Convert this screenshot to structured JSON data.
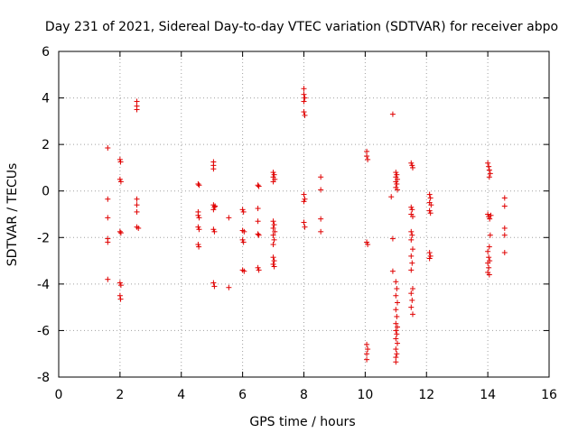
{
  "chart_data": {
    "type": "scatter",
    "title": "Day 231 of 2021, Sidereal Day-to-day VTEC variation (SDTVAR) for receiver abpo",
    "xlabel": "GPS time / hours",
    "ylabel": "SDTVAR / TECUs",
    "xlim": [
      0,
      16
    ],
    "ylim": [
      -8,
      6
    ],
    "xticks": [
      "0",
      "2",
      "4",
      "6",
      "8",
      "10",
      "12",
      "14",
      "16"
    ],
    "yticks": [
      "-8",
      "-6",
      "-4",
      "-2",
      "0",
      "2",
      "4",
      "6"
    ],
    "grid": true,
    "marker": "+",
    "color": "#e00000",
    "series": [
      {
        "name": "SDTVAR",
        "points": [
          [
            1.6,
            1.85
          ],
          [
            1.6,
            -0.35
          ],
          [
            1.6,
            -1.15
          ],
          [
            1.6,
            -2.05
          ],
          [
            1.6,
            -2.2
          ],
          [
            1.6,
            -3.8
          ],
          [
            2.0,
            1.35
          ],
          [
            2.02,
            1.25
          ],
          [
            2.0,
            0.5
          ],
          [
            2.03,
            0.4
          ],
          [
            2.0,
            -1.75
          ],
          [
            2.03,
            -1.8
          ],
          [
            2.0,
            -3.95
          ],
          [
            2.03,
            -4.05
          ],
          [
            2.0,
            -4.5
          ],
          [
            2.02,
            -4.65
          ],
          [
            2.55,
            3.85
          ],
          [
            2.55,
            3.65
          ],
          [
            2.55,
            3.5
          ],
          [
            2.55,
            -0.35
          ],
          [
            2.55,
            -0.6
          ],
          [
            2.55,
            -0.9
          ],
          [
            2.55,
            -1.55
          ],
          [
            2.6,
            -1.6
          ],
          [
            4.55,
            0.3
          ],
          [
            4.58,
            0.25
          ],
          [
            4.55,
            -0.9
          ],
          [
            4.55,
            -1.05
          ],
          [
            4.58,
            -1.15
          ],
          [
            4.55,
            -1.55
          ],
          [
            4.58,
            -1.65
          ],
          [
            4.55,
            -2.3
          ],
          [
            4.57,
            -2.4
          ],
          [
            5.05,
            1.25
          ],
          [
            5.05,
            1.1
          ],
          [
            5.05,
            0.95
          ],
          [
            5.05,
            -0.6
          ],
          [
            5.08,
            -0.7
          ],
          [
            5.05,
            -0.8
          ],
          [
            5.1,
            -0.65
          ],
          [
            5.05,
            -1.65
          ],
          [
            5.08,
            -1.75
          ],
          [
            5.05,
            -3.95
          ],
          [
            5.08,
            -4.1
          ],
          [
            5.55,
            -1.15
          ],
          [
            5.55,
            -4.15
          ],
          [
            6.0,
            -0.8
          ],
          [
            6.03,
            -0.9
          ],
          [
            6.0,
            -1.7
          ],
          [
            6.05,
            -1.75
          ],
          [
            6.0,
            -2.1
          ],
          [
            6.03,
            -2.2
          ],
          [
            6.0,
            -3.4
          ],
          [
            6.05,
            -3.45
          ],
          [
            6.5,
            0.25
          ],
          [
            6.53,
            0.2
          ],
          [
            6.5,
            -0.75
          ],
          [
            6.5,
            -1.3
          ],
          [
            6.5,
            -1.85
          ],
          [
            6.53,
            -1.9
          ],
          [
            6.5,
            -3.3
          ],
          [
            6.53,
            -3.4
          ],
          [
            7.0,
            0.8
          ],
          [
            7.03,
            0.7
          ],
          [
            7.0,
            0.6
          ],
          [
            7.05,
            0.5
          ],
          [
            7.0,
            0.4
          ],
          [
            7.0,
            -1.3
          ],
          [
            7.03,
            -1.45
          ],
          [
            7.0,
            -1.6
          ],
          [
            7.05,
            -1.75
          ],
          [
            7.0,
            -1.9
          ],
          [
            7.03,
            -2.1
          ],
          [
            7.0,
            -2.3
          ],
          [
            7.0,
            -2.85
          ],
          [
            7.03,
            -3.0
          ],
          [
            7.0,
            -3.15
          ],
          [
            7.03,
            -3.25
          ],
          [
            8.0,
            4.4
          ],
          [
            8.0,
            4.15
          ],
          [
            8.03,
            4.0
          ],
          [
            8.0,
            3.85
          ],
          [
            8.0,
            3.4
          ],
          [
            8.03,
            3.25
          ],
          [
            8.0,
            -0.15
          ],
          [
            8.03,
            -0.35
          ],
          [
            8.0,
            -0.45
          ],
          [
            8.0,
            -1.35
          ],
          [
            8.03,
            -1.55
          ],
          [
            8.55,
            0.6
          ],
          [
            8.55,
            0.05
          ],
          [
            8.55,
            -1.2
          ],
          [
            8.55,
            -1.75
          ],
          [
            10.05,
            1.7
          ],
          [
            10.05,
            1.5
          ],
          [
            10.08,
            1.35
          ],
          [
            10.05,
            -2.2
          ],
          [
            10.08,
            -2.3
          ],
          [
            10.05,
            -6.6
          ],
          [
            10.08,
            -6.8
          ],
          [
            10.05,
            -7.0
          ],
          [
            10.05,
            -7.25
          ],
          [
            10.9,
            3.3
          ],
          [
            10.85,
            -0.25
          ],
          [
            10.9,
            -2.05
          ],
          [
            10.9,
            -3.45
          ],
          [
            11.0,
            0.8
          ],
          [
            11.03,
            0.7
          ],
          [
            11.0,
            0.6
          ],
          [
            11.05,
            0.5
          ],
          [
            11.0,
            0.4
          ],
          [
            11.03,
            0.3
          ],
          [
            11.0,
            0.15
          ],
          [
            11.05,
            0.05
          ],
          [
            11.0,
            -3.9
          ],
          [
            11.03,
            -4.2
          ],
          [
            11.0,
            -4.5
          ],
          [
            11.05,
            -4.8
          ],
          [
            11.0,
            -5.1
          ],
          [
            11.03,
            -5.4
          ],
          [
            11.0,
            -5.7
          ],
          [
            11.05,
            -5.85
          ],
          [
            11.0,
            -6.0
          ],
          [
            11.03,
            -6.15
          ],
          [
            11.0,
            -6.35
          ],
          [
            11.05,
            -6.55
          ],
          [
            11.0,
            -6.8
          ],
          [
            11.03,
            -7.0
          ],
          [
            11.0,
            -7.15
          ],
          [
            11.0,
            -7.35
          ],
          [
            11.5,
            1.2
          ],
          [
            11.53,
            1.1
          ],
          [
            11.55,
            1.0
          ],
          [
            11.5,
            -0.7
          ],
          [
            11.53,
            -0.8
          ],
          [
            11.5,
            -1.0
          ],
          [
            11.55,
            -1.1
          ],
          [
            11.5,
            -1.75
          ],
          [
            11.53,
            -1.9
          ],
          [
            11.5,
            -2.1
          ],
          [
            11.55,
            -2.5
          ],
          [
            11.5,
            -2.8
          ],
          [
            11.53,
            -3.1
          ],
          [
            11.5,
            -3.4
          ],
          [
            11.55,
            -4.2
          ],
          [
            11.5,
            -4.4
          ],
          [
            11.53,
            -4.7
          ],
          [
            11.5,
            -5.0
          ],
          [
            11.55,
            -5.3
          ],
          [
            12.1,
            -0.15
          ],
          [
            12.13,
            -0.3
          ],
          [
            12.1,
            -0.5
          ],
          [
            12.15,
            -0.6
          ],
          [
            12.1,
            -0.85
          ],
          [
            12.13,
            -0.95
          ],
          [
            12.1,
            -2.65
          ],
          [
            12.13,
            -2.8
          ],
          [
            12.1,
            -2.9
          ],
          [
            14.0,
            1.2
          ],
          [
            14.03,
            1.05
          ],
          [
            14.05,
            0.9
          ],
          [
            14.08,
            0.75
          ],
          [
            14.05,
            0.6
          ],
          [
            14.0,
            -1.0
          ],
          [
            14.03,
            -1.1
          ],
          [
            14.06,
            -1.2
          ],
          [
            14.1,
            -1.05
          ],
          [
            14.08,
            -1.9
          ],
          [
            14.05,
            -2.4
          ],
          [
            14.0,
            -2.6
          ],
          [
            14.03,
            -2.85
          ],
          [
            14.06,
            -3.0
          ],
          [
            14.0,
            -3.1
          ],
          [
            14.03,
            -3.3
          ],
          [
            14.0,
            -3.5
          ],
          [
            14.05,
            -3.6
          ],
          [
            14.55,
            -0.3
          ],
          [
            14.55,
            -0.65
          ],
          [
            14.55,
            -1.6
          ],
          [
            14.55,
            -1.9
          ],
          [
            14.55,
            -2.65
          ]
        ]
      }
    ]
  }
}
